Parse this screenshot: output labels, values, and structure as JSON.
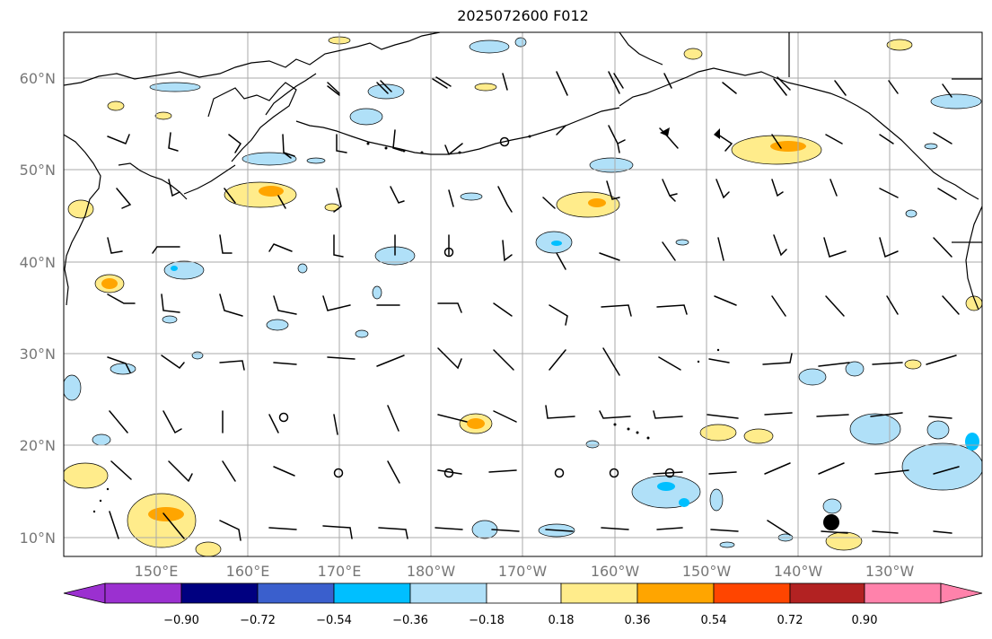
{
  "title": "2025072600 F012",
  "lat_labels": [
    "60°N",
    "50°N",
    "40°N",
    "30°N",
    "20°N",
    "10°N"
  ],
  "lon_labels": [
    "150°E",
    "160°E",
    "170°E",
    "180°W",
    "170°W",
    "160°W",
    "150°W",
    "140°W",
    "130°W"
  ],
  "colorbar": {
    "ticks": [
      "−0.90",
      "−0.72",
      "−0.54",
      "−0.36",
      "−0.18",
      "0.18",
      "0.36",
      "0.54",
      "0.72",
      "0.90"
    ],
    "colors": [
      "#9b30d0",
      "#000080",
      "#3a5fcd",
      "#00bfff",
      "#b0e0f8",
      "#ffffff",
      "#ffec8b",
      "#ffa500",
      "#ff4500",
      "#b22222",
      "#ff82ab"
    ]
  },
  "shading_colors": {
    "neg_light": "#b0e0f8",
    "neg_mid": "#00bfff",
    "pos_light": "#ffec8b",
    "pos_mid": "#ffa500"
  }
}
